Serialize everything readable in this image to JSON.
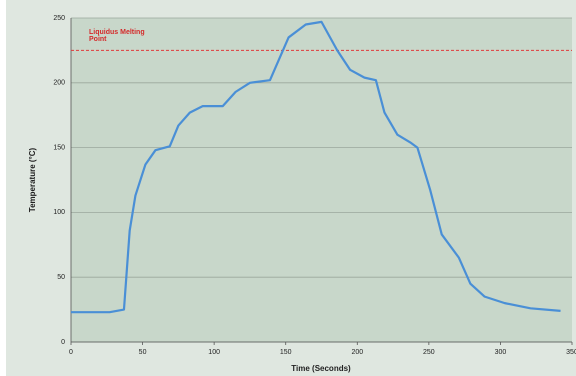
{
  "chart_data": {
    "type": "line",
    "x_label": "Time (Seconds)",
    "y_label": "Temperature (°C)",
    "xlim": [
      0,
      350
    ],
    "xticks": [
      0,
      50,
      100,
      150,
      200,
      250,
      300,
      350
    ],
    "ylim": [
      0,
      250
    ],
    "yticks": [
      0,
      50,
      100,
      150,
      200,
      250
    ],
    "grid": true,
    "reference_line": {
      "value": 225,
      "color": "#e03a3a",
      "label": [
        "Liquidus Melting",
        "Point"
      ]
    },
    "series": [
      {
        "color": "#4a8fd6",
        "x": [
          0,
          27,
          37,
          41,
          45,
          52,
          59,
          69,
          75,
          83,
          92,
          106,
          115,
          125,
          139,
          152,
          164,
          175,
          186,
          195,
          205,
          213,
          219,
          228,
          237,
          242,
          251,
          259,
          271,
          279,
          289,
          303,
          321,
          342
        ],
        "values": [
          23,
          23,
          25,
          86,
          113,
          137,
          148,
          151,
          167,
          177,
          182,
          182,
          193,
          200,
          202,
          235,
          245,
          247,
          225,
          210,
          204,
          202,
          177,
          160,
          154,
          150,
          117,
          83,
          65,
          45,
          35,
          30,
          26,
          24
        ]
      }
    ]
  }
}
